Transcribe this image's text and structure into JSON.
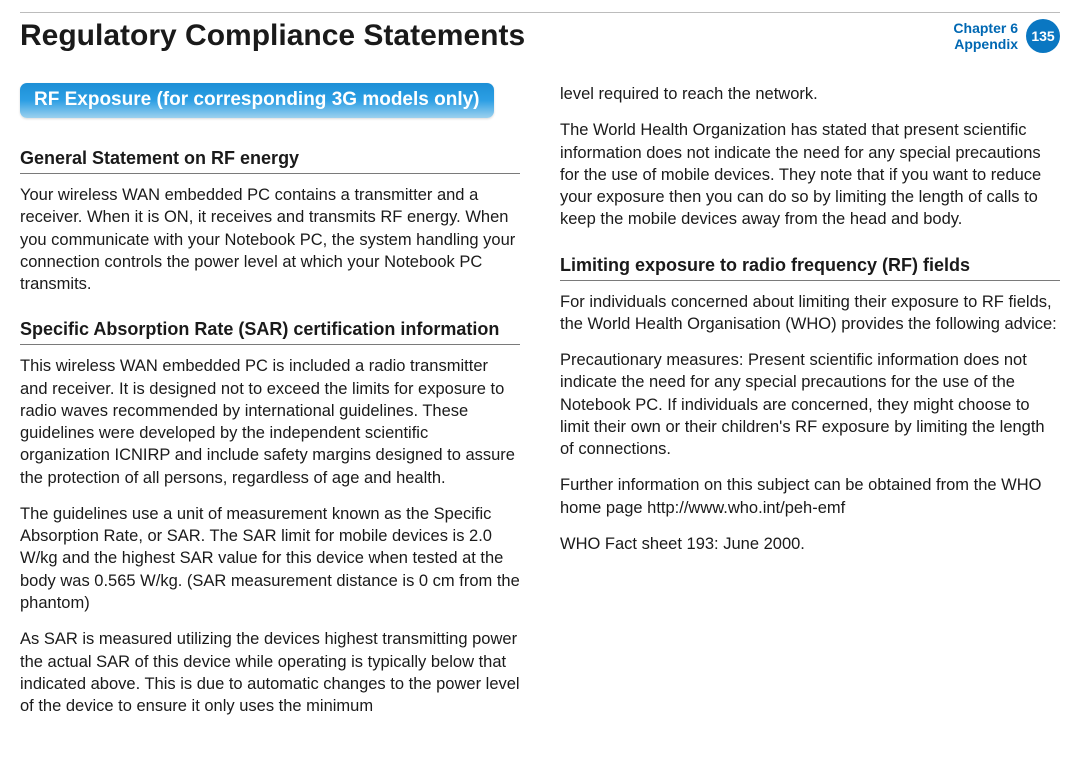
{
  "header": {
    "title": "Regulatory Compliance Statements",
    "chapter_line1": "Chapter 6",
    "chapter_line2": "Appendix",
    "page_number": "135"
  },
  "badge": {
    "text": "RF Exposure (for corresponding 3G models only)",
    "bg_gradient_top": "#1c8fd6",
    "bg_gradient_bottom": "#9cd1ee",
    "text_color": "#ffffff"
  },
  "left": {
    "h1": "General Statement on RF energy",
    "p1": "Your wireless WAN embedded PC contains a transmitter and a receiver. When it is ON, it receives and transmits RF energy. When you communicate with your Notebook PC, the system handling your connection controls the power level at which your Notebook PC transmits.",
    "h2": "Specific Absorption Rate (SAR) certification information",
    "p2": "This wireless WAN embedded PC is included a radio transmitter and receiver. It is designed not to exceed the limits for exposure to radio waves recommended by international guidelines. These guidelines were developed by the independent scientific organization ICNIRP and include safety margins designed to assure the protection of all persons, regardless of age and health.",
    "p3": "The guidelines use a unit of measurement known as the Specific Absorption Rate, or SAR. The SAR limit for mobile devices is 2.0 W/kg and the highest SAR value for this device when tested at the body was 0.565 W/kg. (SAR measurement distance is 0 cm from the phantom)",
    "p4": "As SAR is measured utilizing the devices highest transmitting power the actual SAR of this device while operating is typically below that indicated above. This is due to automatic changes to the power level of the device to ensure it only uses the minimum"
  },
  "right": {
    "p1": "level required to reach the network.",
    "p2": "The World Health Organization has stated that present scientific information does not indicate the need for any special precautions for the use of mobile devices. They note that if you want to reduce your exposure then you can do so by limiting the length of calls to keep the mobile devices away from the head and body.",
    "h1": "Limiting exposure to radio frequency (RF) fields",
    "p3": "For individuals concerned about limiting their exposure to RF fields, the World Health Organisation (WHO) provides the following advice:",
    "p4": "Precautionary measures: Present scientific information does not indicate the need for any special precautions for the use of the Notebook PC. If individuals are concerned, they might choose to limit their own or their children's RF exposure by limiting the length of connections.",
    "p5": "Further information on this subject can be obtained from the WHO home page http://www.who.int/peh-emf",
    "p6": "WHO Fact sheet 193: June 2000."
  },
  "colors": {
    "accent": "#0a77c2",
    "text": "#1a1a1a",
    "rule": "#7a7a7a",
    "background": "#ffffff"
  },
  "typography": {
    "title_size_pt": 30,
    "subhead_size_pt": 18,
    "body_size_pt": 16.5,
    "badge_size_pt": 19
  }
}
